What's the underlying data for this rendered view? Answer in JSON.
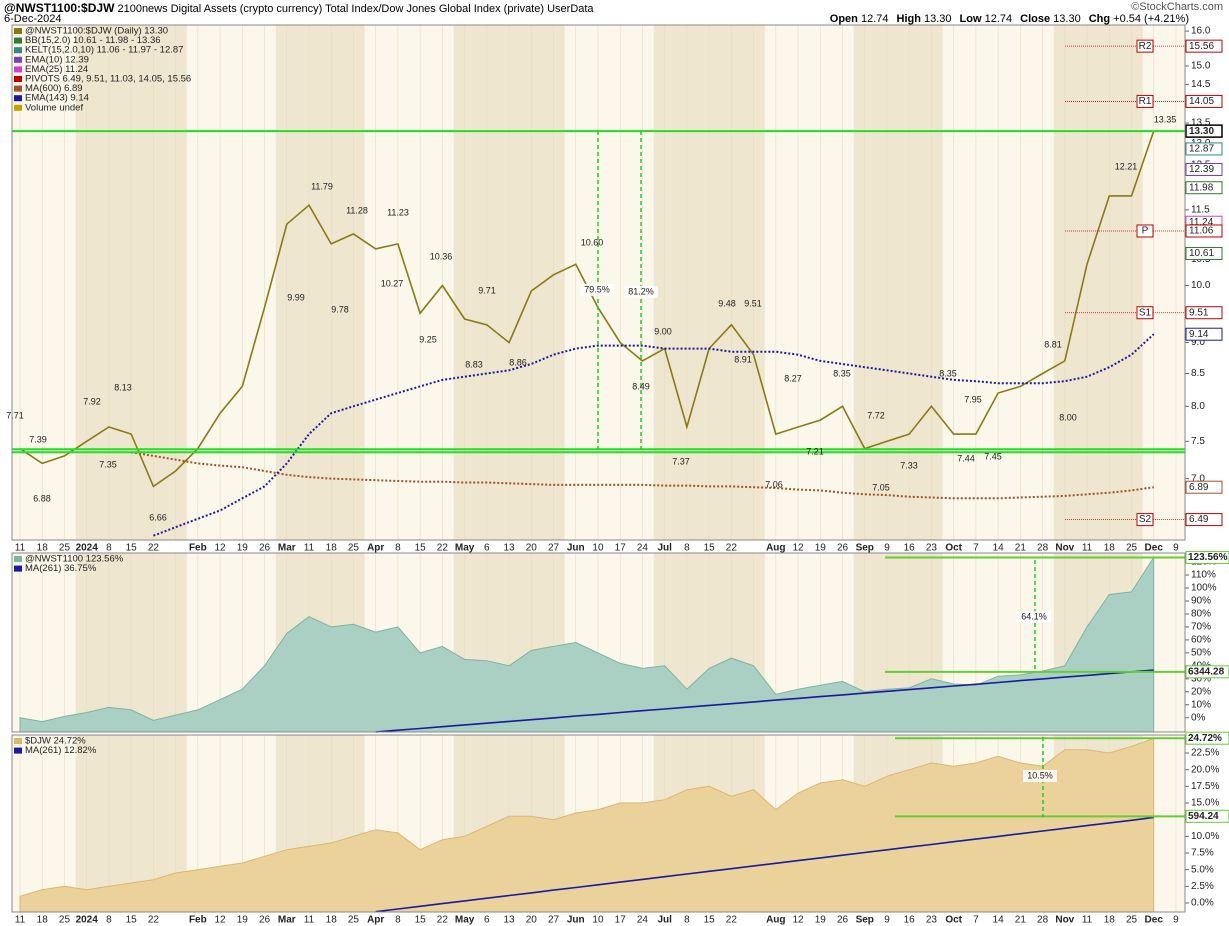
{
  "header": {
    "symbol": "@NWST1100:$DJW",
    "description": "2100news Digital Assets (crypto currency) Total Index/Dow Jones Global Index (private)",
    "source": "UserData",
    "copyright": "©StockCharts.com",
    "date": "6-Dec-2024",
    "quote": [
      {
        "label": "Open",
        "value": "12.74"
      },
      {
        "label": "High",
        "value": "13.30"
      },
      {
        "label": "Low",
        "value": "12.74"
      },
      {
        "label": "Close",
        "value": "13.30"
      },
      {
        "label": "Chg",
        "value": "+0.54 (+4.21%)"
      }
    ]
  },
  "chart_data": [
    {
      "type": "line",
      "log_scale": true,
      "categories": [
        "11",
        "18",
        "25",
        "2024",
        "8",
        "15",
        "22",
        null,
        "Feb",
        "12",
        "19",
        "26",
        "Mar",
        "11",
        "18",
        "25",
        "Apr",
        "8",
        "15",
        "22",
        "May",
        "6",
        "13",
        "20",
        "27",
        "Jun",
        "10",
        "17",
        "24",
        "Jul",
        "8",
        "15",
        "22",
        null,
        "Aug",
        "12",
        "19",
        "26",
        "Sep",
        "9",
        "16",
        "23",
        "Oct",
        "7",
        "14",
        "21",
        "28",
        "Nov",
        "11",
        "18",
        "25",
        "Dec",
        "9"
      ],
      "ylim": [
        6.25,
        16.18
      ],
      "yticks": [
        {
          "value": 7,
          "label": "7.0"
        },
        7.5,
        {
          "value": 8,
          "label": "8.0"
        },
        8.5,
        {
          "value": 9,
          "label": "9.0"
        },
        9.5,
        {
          "value": 10,
          "label": "10.0"
        },
        10.5,
        {
          "value": 11,
          "label": "11.0"
        },
        11.5,
        {
          "value": 12,
          "label": "12.0"
        },
        12.5,
        {
          "value": 13,
          "label": "13.0"
        },
        13.5,
        {
          "value": 14,
          "label": "14.0"
        },
        14.5,
        {
          "value": 15,
          "label": "15.0"
        },
        15.5,
        {
          "value": 16,
          "label": "16.0"
        }
      ],
      "series": [
        {
          "name": "@NWST1100:$DJW (Daily) 13.30",
          "color": "#8a7a16",
          "style": "solid",
          "values": [
            7.4,
            7.2,
            7.3,
            7.5,
            7.7,
            7.6,
            6.9,
            7.1,
            7.4,
            7.9,
            8.3,
            9.6,
            11.2,
            11.6,
            10.8,
            11.0,
            10.7,
            10.8,
            9.5,
            10.0,
            9.4,
            9.3,
            9.0,
            9.9,
            10.2,
            10.4,
            9.6,
            9.0,
            8.7,
            8.9,
            7.7,
            8.9,
            9.3,
            8.8,
            7.6,
            7.7,
            7.8,
            8.0,
            7.4,
            7.5,
            7.6,
            8.0,
            7.6,
            7.6,
            8.2,
            8.3,
            8.5,
            8.7,
            10.4,
            11.8,
            11.8,
            13.3,
            null
          ]
        },
        {
          "name": "MA(600) 6.89",
          "color": "#a0522d",
          "style": "dotted",
          "values": [
            null,
            null,
            null,
            null,
            null,
            7.35,
            7.3,
            7.25,
            7.2,
            7.17,
            7.15,
            7.1,
            7.05,
            7.02,
            7.0,
            6.99,
            6.98,
            6.97,
            6.96,
            6.96,
            6.95,
            6.95,
            6.94,
            6.93,
            6.92,
            6.92,
            6.92,
            6.92,
            6.92,
            6.91,
            6.91,
            6.9,
            6.9,
            6.89,
            6.88,
            6.86,
            6.85,
            6.82,
            6.8,
            6.79,
            6.77,
            6.76,
            6.75,
            6.75,
            6.75,
            6.76,
            6.77,
            6.78,
            6.8,
            6.82,
            6.85,
            6.89,
            null
          ]
        },
        {
          "name": "EMA(143) 9.14",
          "color": "#1a1aa0",
          "style": "dotted",
          "values": [
            null,
            null,
            null,
            null,
            null,
            null,
            6.3,
            6.4,
            6.5,
            6.6,
            6.75,
            6.9,
            7.2,
            7.6,
            7.9,
            8.0,
            8.1,
            8.2,
            8.3,
            8.4,
            8.45,
            8.5,
            8.55,
            8.65,
            8.8,
            8.9,
            8.95,
            8.95,
            8.95,
            8.9,
            8.9,
            8.9,
            8.85,
            8.85,
            8.85,
            8.8,
            8.7,
            8.65,
            8.6,
            8.55,
            8.5,
            8.45,
            8.4,
            8.38,
            8.35,
            8.35,
            8.35,
            8.38,
            8.45,
            8.6,
            8.8,
            9.14,
            null
          ]
        }
      ],
      "indicators": [
        {
          "text": "BB(15,2.0) 10.61 - 11.98 - 13.36",
          "color": "#2e7d32"
        },
        {
          "text": "KELT(15,2.0,10) 11.06 - 11.97 - 12.87",
          "color": "#2f8a80"
        },
        {
          "text": "EMA(10) 12.39",
          "color": "#7b3fb5"
        },
        {
          "text": "EMA(25) 11.24",
          "color": "#d040d0"
        },
        {
          "text": "PIVOTS 6.49, 9.51, 11.03, 14.05, 15.56",
          "color": "#c00000"
        },
        {
          "text": "Volume undef",
          "color": "#c8a000"
        }
      ],
      "hlines": [
        13.3,
        7.39,
        7.35
      ],
      "hline_color": "#22dd22",
      "levels": [
        {
          "value": 15.56,
          "label": "15.56",
          "tag": "R2",
          "color": "#c00000"
        },
        {
          "value": 14.05,
          "label": "14.05",
          "tag": "R1",
          "color": "#c00000"
        },
        {
          "value": 13.3,
          "label": "13.30",
          "color": "#000000"
        },
        {
          "value": 12.87,
          "label": "12.87",
          "color": "#2f8a80"
        },
        {
          "value": 12.39,
          "label": "12.39",
          "color": "#7b3fb5"
        },
        {
          "value": 11.98,
          "label": "11.98",
          "color": "#2e7d32"
        },
        {
          "value": 11.24,
          "label": "11.24",
          "color": "#d040d0"
        },
        {
          "value": 11.06,
          "label": "11.06",
          "tag": "P",
          "color": "#c00000"
        },
        {
          "value": 10.61,
          "label": "10.61",
          "color": "#2e7d32"
        },
        {
          "value": 9.51,
          "label": "9.51",
          "tag": "S1",
          "color": "#c00000"
        },
        {
          "value": 9.14,
          "label": "9.14",
          "color": "#1a1aa0"
        },
        {
          "value": 6.89,
          "label": "6.89",
          "color": "#a0522d"
        },
        {
          "value": 6.49,
          "label": "6.49",
          "tag": "S2",
          "color": "#c00000"
        }
      ],
      "annotations": [
        "7.71",
        "7.39",
        "7.92",
        "8.13",
        "7.35",
        "6.88",
        "6.66",
        "9.99",
        "11.79",
        "11.28",
        "11.23",
        "9.78",
        "10.27",
        "10.36",
        "9.25",
        "9.71",
        "8.83",
        "8.86",
        "10.60",
        "79.5%",
        "81.2%",
        "8.49",
        "9.00",
        "9.48",
        "9.51",
        "8.91",
        "8.27",
        "7.37",
        "7.06",
        "7.21",
        "8.35",
        "7.72",
        "7.05",
        "7.33",
        "8.35",
        "7.95",
        "7.44",
        "7.45",
        "8.81",
        "8.00",
        "12.21",
        "13.35"
      ]
    },
    {
      "type": "area",
      "ylim": [
        -11,
        127
      ],
      "yticks": [
        {
          "value": 0,
          "label": "0%"
        },
        {
          "value": 10,
          "label": "10%"
        },
        {
          "value": 20,
          "label": "20%"
        },
        {
          "value": 30,
          "label": "30%"
        },
        {
          "value": 40,
          "label": "40%"
        },
        {
          "value": 50,
          "label": "50%"
        },
        {
          "value": 60,
          "label": "60%"
        },
        {
          "value": 70,
          "label": "70%"
        },
        {
          "value": 80,
          "label": "80%"
        },
        {
          "value": 90,
          "label": "90%"
        },
        {
          "value": 100,
          "label": "100%"
        },
        {
          "value": 110,
          "label": "110%"
        },
        {
          "value": 120,
          "label": "120%"
        }
      ],
      "series": [
        {
          "name": "@NWST1100 123.56%",
          "color": "#7fb3a3",
          "fill": "#a9d0c2",
          "style": "area",
          "values": [
            0,
            -3,
            1,
            4,
            8,
            6,
            -2,
            2,
            6,
            14,
            22,
            40,
            65,
            78,
            70,
            72,
            66,
            70,
            50,
            55,
            45,
            44,
            40,
            52,
            55,
            58,
            50,
            42,
            38,
            40,
            22,
            38,
            46,
            40,
            18,
            22,
            25,
            28,
            20,
            22,
            23,
            30,
            26,
            25,
            32,
            33,
            36,
            40,
            70,
            95,
            97,
            123.56,
            null
          ]
        },
        {
          "name": "MA(261) 36.75%",
          "color": "#1a1aa0",
          "style": "solid",
          "values": [
            null,
            null,
            null,
            null,
            null,
            null,
            null,
            null,
            null,
            null,
            null,
            null,
            null,
            null,
            null,
            null,
            -11,
            -9.6,
            -8.3,
            -6.9,
            -5.5,
            -4.2,
            -2.8,
            -1.5,
            -0.1,
            1.3,
            2.6,
            4.0,
            5.4,
            6.7,
            8.1,
            9.5,
            10.8,
            12.2,
            13.6,
            14.9,
            16.3,
            17.6,
            19.0,
            20.4,
            21.7,
            23.1,
            24.5,
            25.8,
            27.2,
            28.6,
            29.9,
            31.3,
            32.6,
            34.0,
            35.4,
            36.75,
            null
          ]
        }
      ],
      "hlines": [
        123.56,
        35.4
      ],
      "hline_color": "#66cc33",
      "hline_labels": [
        "123.56%",
        "6344.28"
      ],
      "annotations": [
        "64.1%"
      ]
    },
    {
      "type": "area",
      "ylim": [
        -1.35,
        25.2
      ],
      "categories": [
        "11",
        "18",
        "25",
        "2024",
        "8",
        "15",
        "22",
        null,
        "Feb",
        "12",
        "19",
        "26",
        "Mar",
        "11",
        "18",
        "25",
        "Apr",
        "8",
        "15",
        "22",
        "May",
        "6",
        "13",
        "20",
        "27",
        "Jun",
        "10",
        "17",
        "24",
        "Jul",
        "8",
        "15",
        "22",
        null,
        "Aug",
        "12",
        "19",
        "26",
        "Sep",
        "9",
        "16",
        "23",
        "Oct",
        "7",
        "14",
        "21",
        "28",
        "Nov",
        "11",
        "18",
        "25",
        "Dec",
        "9"
      ],
      "yticks": [
        {
          "value": 0,
          "label": "0.0%"
        },
        {
          "value": 2.5,
          "label": "2.5%"
        },
        {
          "value": 5,
          "label": "5.0%"
        },
        {
          "value": 7.5,
          "label": "7.5%"
        },
        {
          "value": 10,
          "label": "10.0%"
        },
        {
          "value": 12.5,
          "label": "12.5%"
        },
        {
          "value": 15,
          "label": "15.0%"
        },
        {
          "value": 17.5,
          "label": "17.5%"
        },
        {
          "value": 20,
          "label": "20.0%"
        },
        {
          "value": 22.5,
          "label": "22.5%"
        }
      ],
      "series": [
        {
          "name": "$DJW 24.72%",
          "color": "#d9b870",
          "fill": "#ebd29a",
          "style": "area",
          "values": [
            1,
            2,
            2.5,
            2,
            2.5,
            3,
            3.5,
            4.5,
            5,
            5.5,
            6,
            7,
            8,
            8.5,
            9,
            10,
            11,
            10.5,
            8,
            9.5,
            10,
            11.5,
            13,
            13,
            12.5,
            13.5,
            14,
            15,
            15,
            15.5,
            17,
            17.5,
            16,
            17,
            14,
            16.5,
            18,
            18.5,
            17.5,
            19,
            20,
            21,
            20.5,
            21,
            22,
            21,
            20.5,
            23,
            23,
            22.5,
            23.5,
            24.72,
            null
          ]
        },
        {
          "name": "MA(261) 12.82%",
          "color": "#1a1aa0",
          "style": "solid",
          "values": [
            null,
            null,
            null,
            null,
            null,
            null,
            null,
            null,
            null,
            null,
            null,
            null,
            null,
            null,
            null,
            null,
            -1.3,
            -0.9,
            -0.49,
            -0.09,
            0.31,
            0.72,
            1.12,
            1.52,
            1.93,
            2.33,
            2.73,
            3.14,
            3.54,
            3.94,
            4.35,
            4.75,
            5.15,
            5.56,
            5.96,
            6.36,
            6.77,
            7.17,
            7.57,
            7.98,
            8.38,
            8.78,
            9.19,
            9.59,
            9.99,
            10.4,
            10.8,
            11.2,
            11.61,
            12.01,
            12.41,
            12.82,
            null
          ]
        }
      ],
      "hlines": [
        24.72,
        13.0
      ],
      "hline_color": "#66cc33",
      "hline_labels": [
        "24.72%",
        "594.24"
      ],
      "annotations": [
        "10.5%"
      ]
    }
  ]
}
